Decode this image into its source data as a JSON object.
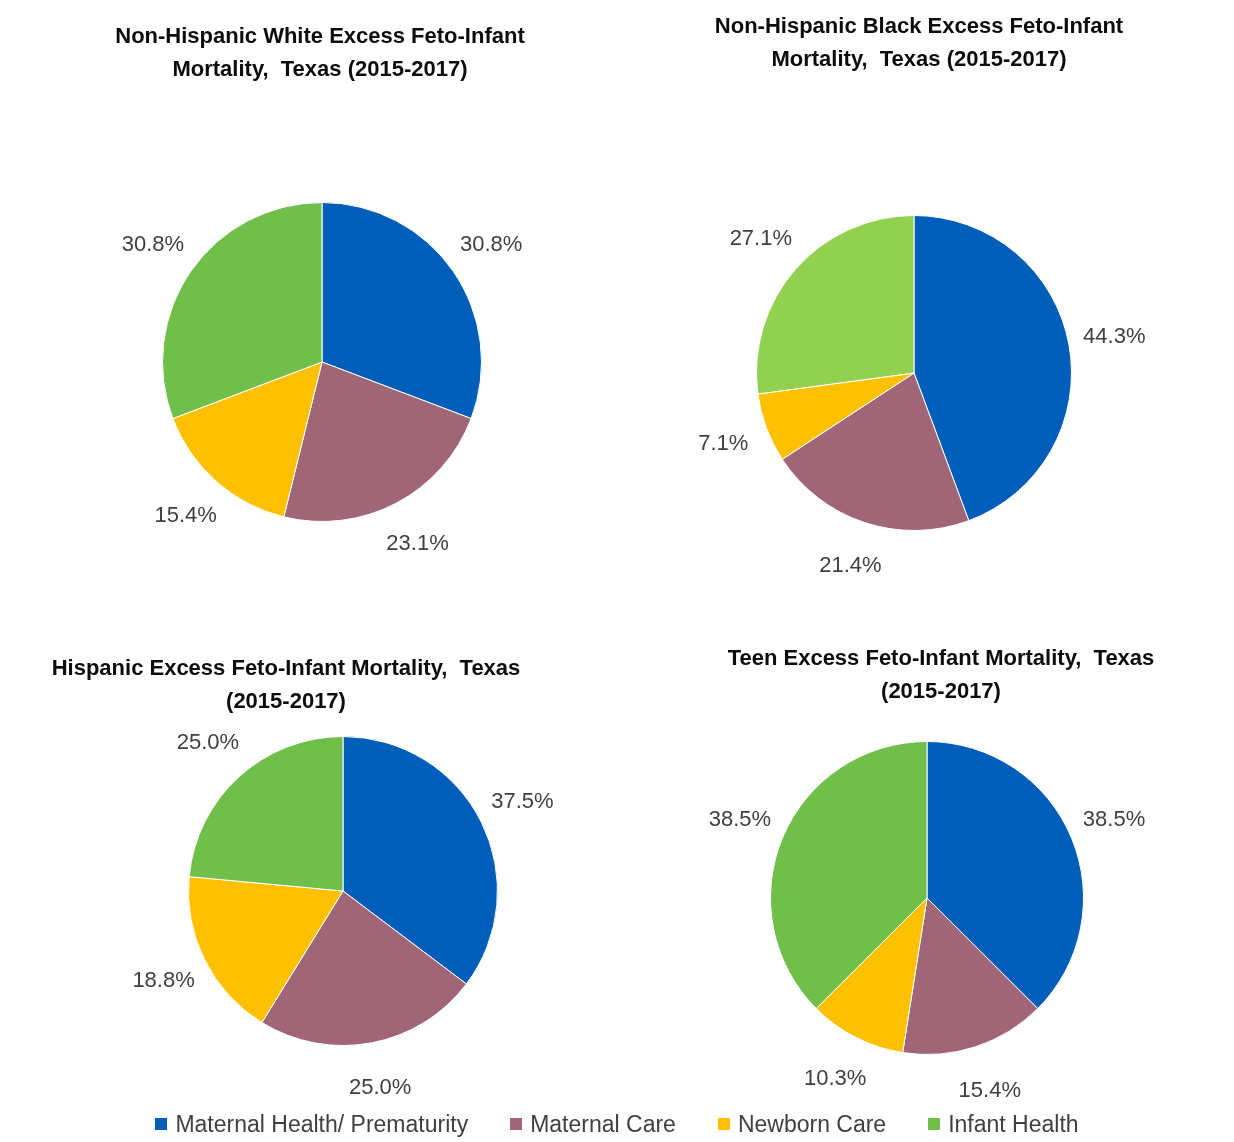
{
  "chart_data": [
    {
      "type": "pie",
      "title": "Non-Hispanic White Excess Feto-Infant Mortality,  Texas (2015-2017)",
      "categories": [
        "Maternal Health/ Prematurity",
        "Maternal Care",
        "Newborn Care",
        "Infant Health"
      ],
      "values": [
        30.8,
        23.1,
        15.4,
        30.8
      ],
      "colors": [
        "#005ebb",
        "#a06678",
        "#ffc000",
        "#70bf4b"
      ],
      "value_labels": [
        "30.8%",
        "23.1%",
        "15.4%",
        "30.8%"
      ],
      "legend": "bottom"
    },
    {
      "type": "pie",
      "title": "Non-Hispanic Black Excess Feto-Infant Mortality,  Texas (2015-2017)",
      "categories": [
        null,
        null,
        null,
        null
      ],
      "values": [
        44.3,
        21.4,
        7.1,
        27.1
      ],
      "colors": [
        "#005ebb",
        "#a06678",
        "#ffc000",
        "#92d050"
      ],
      "value_labels": [
        "44.3%",
        "21.4%",
        "7.1%",
        "27.1%"
      ]
    },
    {
      "type": "pie",
      "title": "Hispanic Excess Feto-Infant Mortality,  Texas (2015-2017)",
      "categories": [
        null,
        null,
        null,
        null
      ],
      "values": [
        37.5,
        25.0,
        18.8,
        25.0
      ],
      "colors": [
        "#005ebb",
        "#a06678",
        "#ffc000",
        "#70bf4b"
      ],
      "value_labels": [
        "37.5%",
        "25.0%",
        "18.8%",
        "25.0%"
      ]
    },
    {
      "type": "pie",
      "title": "Teen Excess Feto-Infant Mortality,  Texas (2015-2017)",
      "categories": [
        null,
        null,
        null,
        null
      ],
      "values": [
        38.5,
        15.4,
        10.3,
        38.5
      ],
      "colors": [
        "#005ebb",
        "#a06678",
        "#ffc000",
        "#70bf4b"
      ],
      "value_labels": [
        "38.5%",
        "15.4%",
        "10.3%",
        "38.5%"
      ]
    }
  ]
}
